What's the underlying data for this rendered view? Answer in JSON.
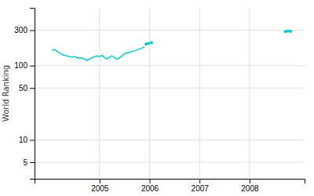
{
  "chart_data": {
    "type": "line",
    "ylabel": "World Ranking",
    "log": "y",
    "grid": true,
    "xlim": [
      2003.7,
      2009.1
    ],
    "xticks": [
      2005,
      2006,
      2007,
      2008
    ],
    "ylim": [
      3,
      600
    ],
    "yticks": [
      5,
      10,
      50,
      100,
      300
    ],
    "series": [
      {
        "color": "#00cccc",
        "line_style": "solid",
        "x": [
          2004.05,
          2004.1,
          2004.15,
          2004.2,
          2004.25,
          2004.3,
          2004.35,
          2004.4,
          2004.45,
          2004.5,
          2004.55,
          2004.6,
          2004.65,
          2004.7,
          2004.75,
          2004.8,
          2004.85,
          2004.9,
          2004.95,
          2005.0,
          2005.05,
          2005.1,
          2005.15,
          2005.2,
          2005.25,
          2005.3,
          2005.35,
          2005.4,
          2005.45,
          2005.5,
          2005.55,
          2005.6,
          2005.65,
          2005.7,
          2005.75,
          2005.8,
          2005.85,
          2005.9
        ],
        "values": [
          160,
          165,
          155,
          148,
          142,
          138,
          135,
          132,
          130,
          133,
          128,
          125,
          128,
          122,
          118,
          122,
          128,
          132,
          135,
          132,
          138,
          128,
          123,
          130,
          135,
          128,
          122,
          128,
          135,
          145,
          148,
          150,
          155,
          158,
          162,
          167,
          172,
          178
        ]
      },
      {
        "color": "#00cccc",
        "line_style": "none",
        "marker": "dot",
        "x": [
          2005.93,
          2005.98,
          2006.04
        ],
        "values": [
          195,
          200,
          203
        ]
      },
      {
        "color": "#00cccc",
        "line_style": "solid",
        "marker": "dot",
        "x": [
          2008.72,
          2008.77,
          2008.82
        ],
        "values": [
          287,
          293,
          290
        ]
      }
    ]
  }
}
